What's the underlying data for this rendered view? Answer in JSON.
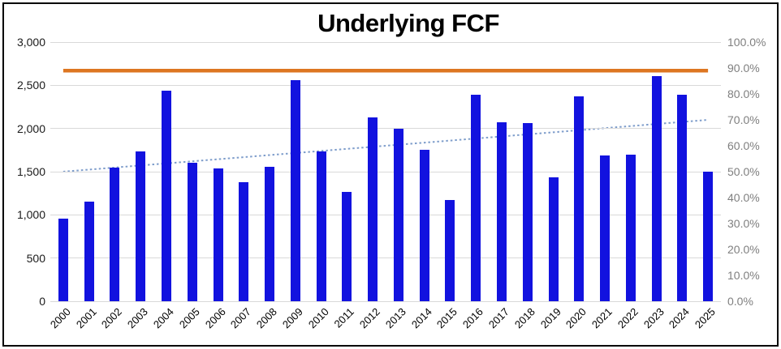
{
  "chart_data": {
    "type": "bar",
    "title": "Underlying FCF",
    "categories": [
      "2000",
      "2001",
      "2002",
      "2003",
      "2004",
      "2005",
      "2006",
      "2007",
      "2008",
      "2009",
      "2010",
      "2011",
      "2012",
      "2013",
      "2014",
      "2015",
      "2016",
      "2017",
      "2018",
      "2019",
      "2020",
      "2021",
      "2022",
      "2023",
      "2024",
      "2025"
    ],
    "series": [
      {
        "name": "Underlying FCF",
        "type": "bar",
        "axis": "left",
        "color": "#1212df",
        "values": [
          960,
          1150,
          1550,
          1730,
          2440,
          1600,
          1540,
          1380,
          1560,
          2560,
          1730,
          1270,
          2130,
          2000,
          1750,
          1170,
          2390,
          2070,
          2060,
          1430,
          2370,
          1690,
          1700,
          2610,
          2390,
          1500
        ]
      },
      {
        "name": "benchmark-line",
        "type": "line",
        "style": "solid",
        "axis": "right",
        "color": "#dd7621",
        "constant": 89.0
      },
      {
        "name": "trend-line",
        "type": "line",
        "style": "dotted",
        "axis": "right",
        "color": "#7e9dcb",
        "start": 50.0,
        "end": 70.0
      }
    ],
    "left_axis": {
      "min": 0,
      "max": 3000,
      "step": 500,
      "labels": [
        "0",
        "500",
        "1,000",
        "1,500",
        "2,000",
        "2,500",
        "3,000"
      ]
    },
    "right_axis": {
      "min": 0,
      "max": 100,
      "step": 10,
      "labels": [
        "0.0%",
        "10.0%",
        "20.0%",
        "30.0%",
        "40.0%",
        "50.0%",
        "60.0%",
        "70.0%",
        "80.0%",
        "90.0%",
        "100.0%"
      ]
    },
    "grid": "horizontal gridlines at each left-axis step",
    "legend": "none",
    "colors": {
      "gridline": "#d9d9d9",
      "left_axis_text": "#1a1a1a",
      "right_axis_text": "#7f7f7f",
      "x_axis_text": "#000000",
      "frame_border": "#000000",
      "background": "#ffffff"
    }
  }
}
